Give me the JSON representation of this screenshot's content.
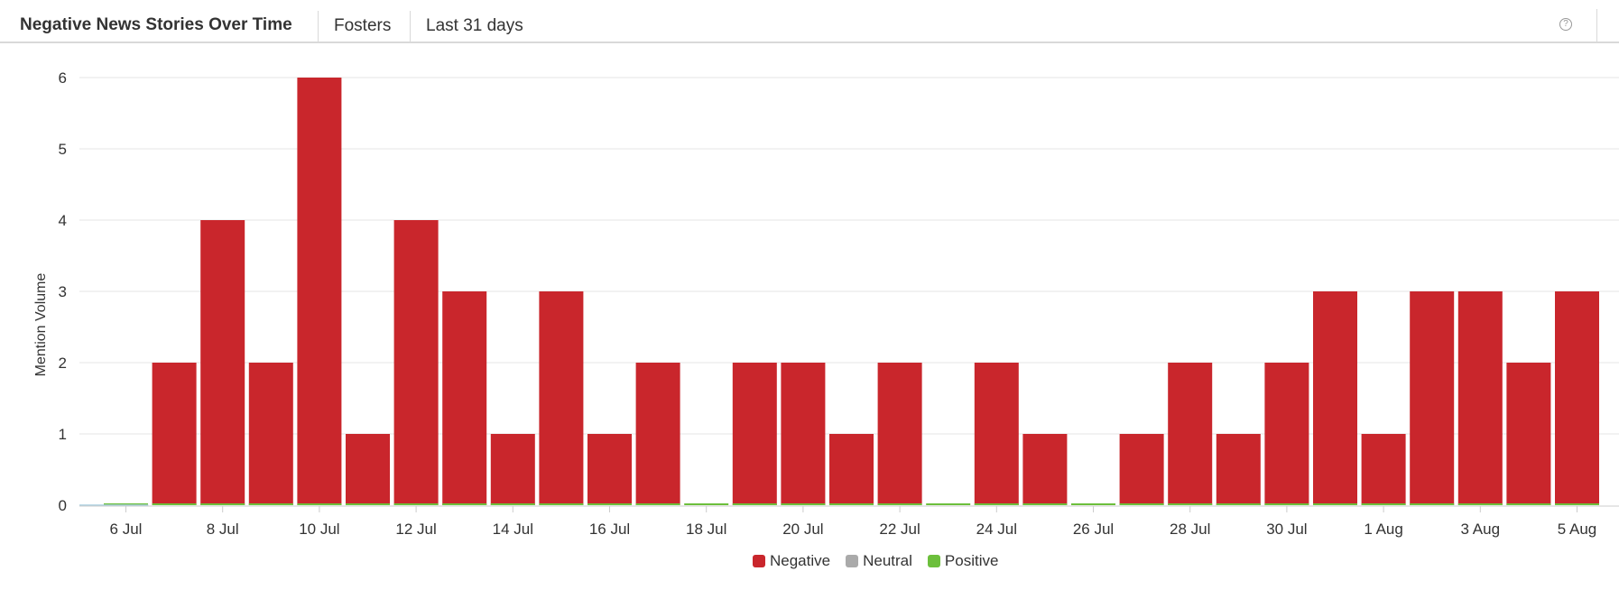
{
  "header": {
    "title": "Negative News Stories Over Time",
    "filter": "Fosters",
    "range": "Last 31 days",
    "help_icon": "question-circle-icon"
  },
  "colors": {
    "negative": "#c9262c",
    "neutral": "#aaaaaa",
    "positive": "#6cbf3c",
    "grid": "#e6e6e6",
    "axis_text": "#333333"
  },
  "chart_data": {
    "type": "bar",
    "stacked": true,
    "title": "Negative News Stories Over Time",
    "xlabel": "",
    "ylabel": "Mention Volume",
    "ylim": [
      0,
      6
    ],
    "yticks": [
      0,
      1,
      2,
      3,
      4,
      5,
      6
    ],
    "grid": true,
    "legend": "bottom-center",
    "categories": [
      "6 Jul",
      "7 Jul",
      "8 Jul",
      "9 Jul",
      "10 Jul",
      "11 Jul",
      "12 Jul",
      "13 Jul",
      "14 Jul",
      "15 Jul",
      "16 Jul",
      "17 Jul",
      "18 Jul",
      "19 Jul",
      "20 Jul",
      "21 Jul",
      "22 Jul",
      "23 Jul",
      "24 Jul",
      "25 Jul",
      "26 Jul",
      "27 Jul",
      "28 Jul",
      "29 Jul",
      "30 Jul",
      "31 Jul",
      "1 Aug",
      "2 Aug",
      "3 Aug",
      "4 Aug",
      "5 Aug"
    ],
    "tick_labels": [
      "6 Jul",
      "8 Jul",
      "10 Jul",
      "12 Jul",
      "14 Jul",
      "16 Jul",
      "18 Jul",
      "20 Jul",
      "22 Jul",
      "24 Jul",
      "26 Jul",
      "28 Jul",
      "30 Jul",
      "1 Aug",
      "3 Aug",
      "5 Aug"
    ],
    "series": [
      {
        "name": "Negative",
        "color": "#c9262c",
        "values": [
          0,
          2,
          4,
          2,
          6,
          1,
          4,
          3,
          1,
          3,
          1,
          2,
          0,
          2,
          2,
          1,
          2,
          0,
          2,
          1,
          0,
          1,
          2,
          1,
          2,
          3,
          1,
          3,
          3,
          2,
          3
        ]
      },
      {
        "name": "Neutral",
        "color": "#aaaaaa",
        "values": [
          0,
          0,
          0,
          0,
          0,
          0,
          0,
          0,
          0,
          0,
          0,
          0,
          0,
          0,
          0,
          0,
          0,
          0,
          0,
          0,
          0,
          0,
          0,
          0,
          0,
          0,
          0,
          0,
          0,
          0,
          0
        ]
      },
      {
        "name": "Positive",
        "color": "#6cbf3c",
        "values": [
          0,
          0,
          0,
          0,
          0,
          0,
          0,
          0,
          0,
          0,
          0,
          0,
          0,
          0,
          0,
          0,
          0,
          0,
          0,
          0,
          0,
          0,
          0,
          0,
          0,
          0,
          0,
          0,
          0,
          0,
          0
        ]
      }
    ]
  }
}
